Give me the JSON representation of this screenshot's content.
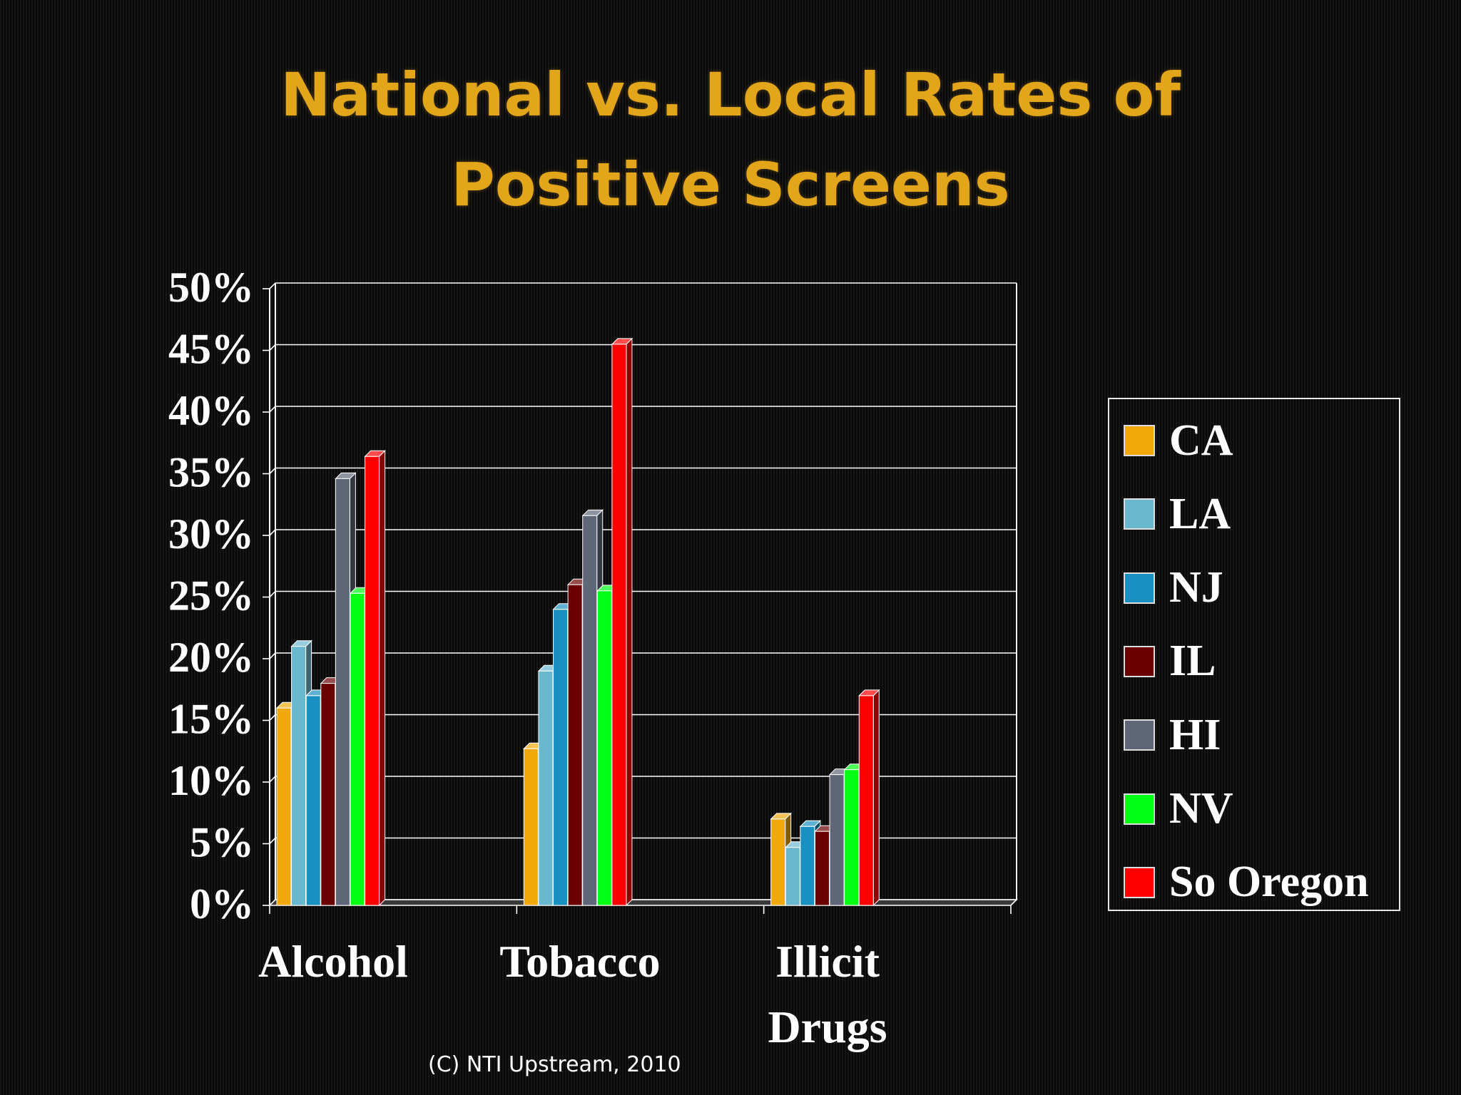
{
  "title": {
    "line1": "National vs. Local Rates of",
    "line2": "Positive Screens"
  },
  "credit": "(C) NTI Upstream, 2010",
  "chart_data": {
    "type": "bar",
    "style": "3d-clustered",
    "categories": [
      "Alcohol",
      "Tobacco",
      "Illicit Drugs"
    ],
    "category_label_lines": [
      [
        "Alcohol"
      ],
      [
        "Tobacco"
      ],
      [
        "Illicit",
        "Drugs"
      ]
    ],
    "series": [
      {
        "name": "CA",
        "color": "#f0a80a",
        "values": [
          16,
          12.7,
          7
        ]
      },
      {
        "name": "LA",
        "color": "#6ab8d0",
        "values": [
          21,
          19,
          4.7
        ]
      },
      {
        "name": "NJ",
        "color": "#1a8fc2",
        "values": [
          17,
          24,
          6.4
        ]
      },
      {
        "name": "IL",
        "color": "#6b0000",
        "values": [
          18,
          26,
          6
        ]
      },
      {
        "name": "HI",
        "color": "#5f6678",
        "values": [
          34.6,
          31.6,
          10.6
        ]
      },
      {
        "name": "NV",
        "color": "#00ff12",
        "values": [
          25.3,
          25.5,
          11
        ]
      },
      {
        "name": "So Oregon",
        "color": "#ff0000",
        "values": [
          36.4,
          45.5,
          17
        ]
      }
    ],
    "y_ticks": [
      "0%",
      "5%",
      "10%",
      "15%",
      "20%",
      "25%",
      "30%",
      "35%",
      "40%",
      "45%",
      "50%"
    ],
    "ylim": [
      0,
      50
    ],
    "y_unit": "%",
    "grid": true,
    "legend_position": "right"
  }
}
